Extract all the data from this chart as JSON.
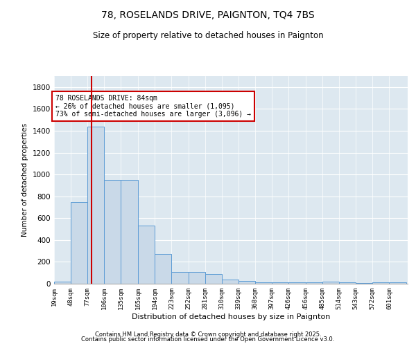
{
  "title1": "78, ROSELANDS DRIVE, PAIGNTON, TQ4 7BS",
  "title2": "Size of property relative to detached houses in Paignton",
  "xlabel": "Distribution of detached houses by size in Paignton",
  "ylabel": "Number of detached properties",
  "bar_edges": [
    19,
    48,
    77,
    106,
    135,
    165,
    194,
    223,
    252,
    281,
    310,
    339,
    368,
    397,
    426,
    456,
    485,
    514,
    543,
    572,
    601
  ],
  "bar_heights": [
    20,
    750,
    1440,
    950,
    950,
    530,
    270,
    110,
    110,
    90,
    40,
    25,
    10,
    15,
    10,
    10,
    20,
    10,
    5,
    10,
    10
  ],
  "bar_color": "#c9d9e8",
  "bar_edge_color": "#5b9bd5",
  "vline_x": 84,
  "vline_color": "#cc0000",
  "annotation_text": "78 ROSELANDS DRIVE: 84sqm\n← 26% of detached houses are smaller (1,095)\n73% of semi-detached houses are larger (3,096) →",
  "annotation_box_color": "#ffffff",
  "annotation_box_edge": "#cc0000",
  "ylim": [
    0,
    1900
  ],
  "yticks": [
    0,
    200,
    400,
    600,
    800,
    1000,
    1200,
    1400,
    1600,
    1800
  ],
  "bg_color": "#dde8f0",
  "footer1": "Contains HM Land Registry data © Crown copyright and database right 2025.",
  "footer2": "Contains public sector information licensed under the Open Government Licence v3.0."
}
